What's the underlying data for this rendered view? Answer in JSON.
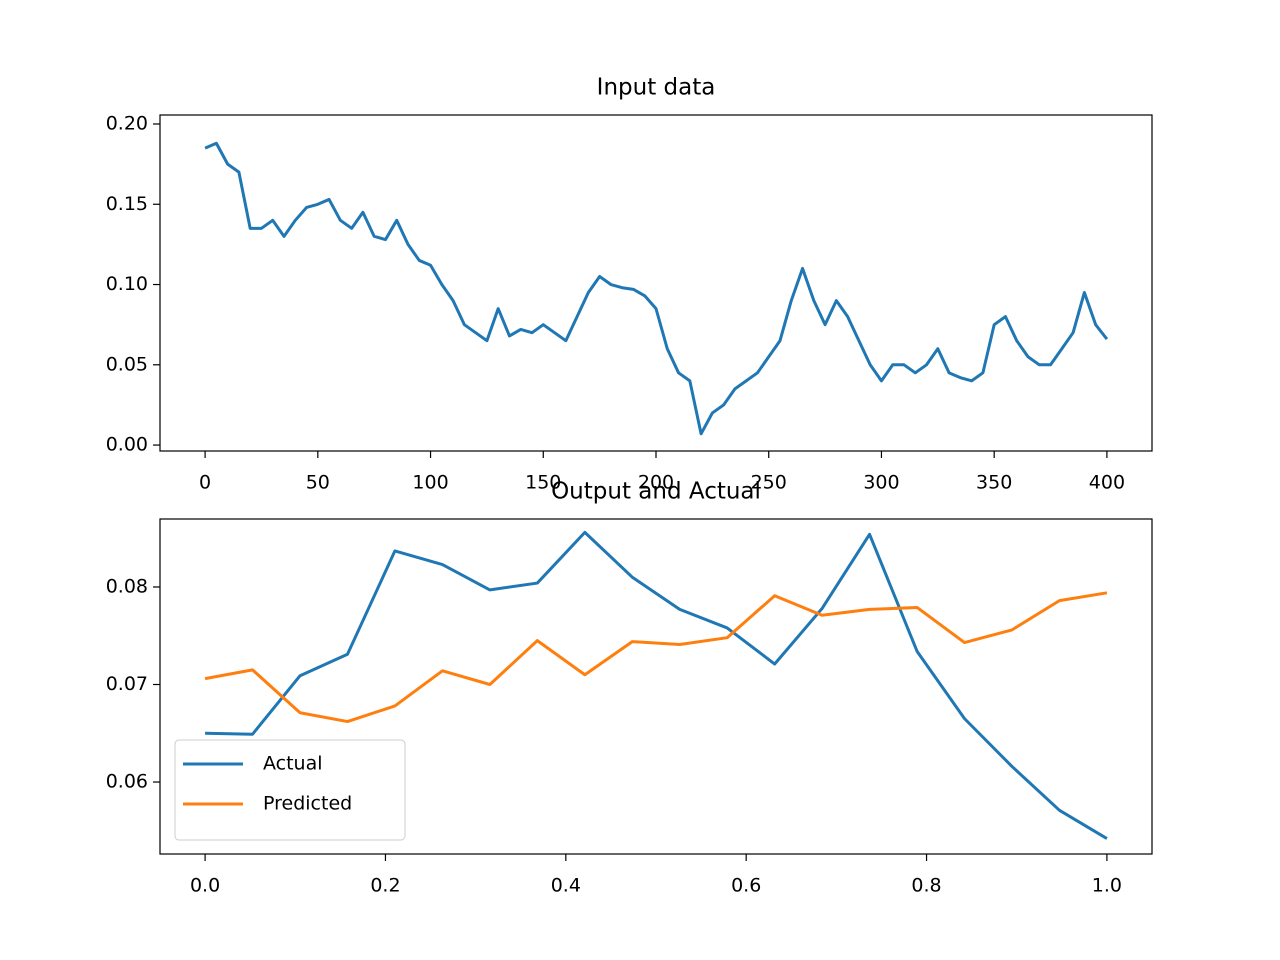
{
  "chart_data": [
    {
      "type": "line",
      "title": "Input data",
      "x": [
        0,
        5,
        10,
        15,
        20,
        25,
        30,
        35,
        40,
        45,
        50,
        55,
        60,
        65,
        70,
        75,
        80,
        85,
        90,
        95,
        100,
        105,
        110,
        115,
        120,
        125,
        130,
        135,
        140,
        145,
        150,
        155,
        160,
        165,
        170,
        175,
        180,
        185,
        190,
        195,
        200,
        205,
        210,
        215,
        220,
        225,
        230,
        235,
        240,
        245,
        250,
        255,
        260,
        265,
        270,
        275,
        280,
        285,
        290,
        295,
        300,
        305,
        310,
        315,
        320,
        325,
        330,
        335,
        340,
        345,
        350,
        355,
        360,
        365,
        370,
        375,
        380,
        385,
        390,
        395,
        400
      ],
      "series": [
        {
          "name": null,
          "color": "#1f77b4",
          "values": [
            0.185,
            0.188,
            0.175,
            0.17,
            0.135,
            0.135,
            0.14,
            0.13,
            0.14,
            0.148,
            0.15,
            0.153,
            0.14,
            0.135,
            0.145,
            0.13,
            0.128,
            0.14,
            0.125,
            0.115,
            0.112,
            0.1,
            0.09,
            0.075,
            0.07,
            0.065,
            0.085,
            0.068,
            0.072,
            0.07,
            0.075,
            0.07,
            0.065,
            0.08,
            0.095,
            0.105,
            0.1,
            0.098,
            0.097,
            0.093,
            0.085,
            0.06,
            0.045,
            0.04,
            0.007,
            0.02,
            0.025,
            0.035,
            0.04,
            0.045,
            0.055,
            0.065,
            0.09,
            0.11,
            0.09,
            0.075,
            0.09,
            0.08,
            0.065,
            0.05,
            0.04,
            0.05,
            0.05,
            0.045,
            0.05,
            0.06,
            0.045,
            0.042,
            0.04,
            0.045,
            0.075,
            0.08,
            0.065,
            0.055,
            0.05,
            0.05,
            0.06,
            0.07,
            0.095,
            0.075,
            0.066
          ]
        }
      ],
      "xlim": [
        -20,
        420
      ],
      "ylim": [
        -0.0037,
        0.2056
      ],
      "xticks": [
        0,
        50,
        100,
        150,
        200,
        250,
        300,
        350,
        400
      ],
      "yticks": [
        {
          "value": 0,
          "label": "0.00"
        },
        {
          "value": 0.05,
          "label": "0.05"
        },
        {
          "value": 0.1,
          "label": "0.10"
        },
        {
          "value": 0.15,
          "label": "0.15"
        },
        {
          "value": 0.2,
          "label": "0.20"
        }
      ]
    },
    {
      "type": "line",
      "title": "Output and Actual",
      "x": [
        0,
        0.0526,
        0.1053,
        0.1579,
        0.2105,
        0.2632,
        0.3158,
        0.3684,
        0.4211,
        0.4737,
        0.5263,
        0.5789,
        0.6316,
        0.6842,
        0.7368,
        0.7895,
        0.8421,
        0.8947,
        0.9474,
        1
      ],
      "series": [
        {
          "name": "Actual",
          "color": "#1f77b4",
          "values": [
            0.065,
            0.0649,
            0.0709,
            0.0731,
            0.0837,
            0.0823,
            0.0797,
            0.0804,
            0.0856,
            0.081,
            0.0777,
            0.0758,
            0.0721,
            0.0778,
            0.0854,
            0.0734,
            0.0665,
            0.0616,
            0.0571,
            0.0542
          ]
        },
        {
          "name": "Predicted",
          "color": "#ff7f0e",
          "values": [
            0.0706,
            0.0715,
            0.0671,
            0.0662,
            0.0678,
            0.0714,
            0.07,
            0.0745,
            0.071,
            0.0744,
            0.0741,
            0.0748,
            0.0791,
            0.0771,
            0.0777,
            0.0779,
            0.0743,
            0.0756,
            0.0786,
            0.0794
          ]
        }
      ],
      "xlim": [
        -0.05,
        1.05
      ],
      "ylim": [
        0.05262,
        0.08697
      ],
      "xticks": [
        {
          "value": 0,
          "label": "0.0"
        },
        {
          "value": 0.2,
          "label": "0.2"
        },
        {
          "value": 0.4,
          "label": "0.4"
        },
        {
          "value": 0.6,
          "label": "0.6"
        },
        {
          "value": 0.8,
          "label": "0.8"
        },
        {
          "value": 1,
          "label": "1.0"
        }
      ],
      "yticks": [
        0.06,
        0.07,
        0.08
      ],
      "legend": "lower left"
    }
  ]
}
